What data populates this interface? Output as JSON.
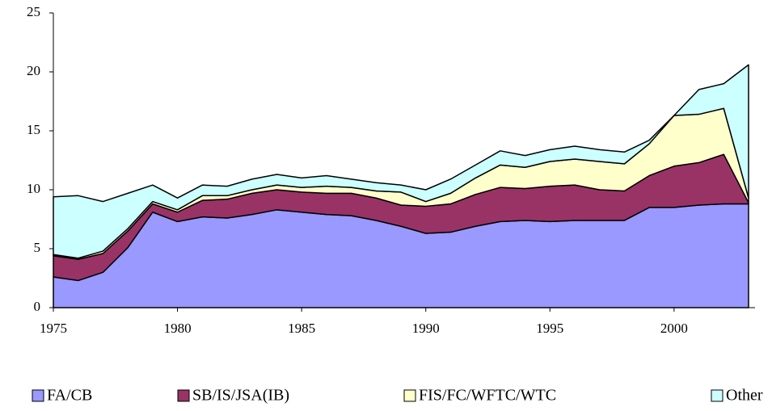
{
  "chart_data": {
    "type": "stacked_area",
    "x": [
      1975,
      1976,
      1977,
      1978,
      1979,
      1980,
      1981,
      1982,
      1983,
      1984,
      1985,
      1986,
      1987,
      1988,
      1989,
      1990,
      1991,
      1992,
      1993,
      1994,
      1995,
      1996,
      1997,
      1998,
      1999,
      2000,
      2001,
      2002,
      2003
    ],
    "series": [
      {
        "name": "FA/CB",
        "color": "#9999ff",
        "values": [
          2.6,
          2.3,
          3.0,
          5.1,
          8.1,
          7.3,
          7.7,
          7.6,
          7.9,
          8.3,
          8.1,
          7.9,
          7.8,
          7.4,
          6.9,
          6.3,
          6.4,
          6.9,
          7.3,
          7.4,
          7.3,
          7.4,
          7.4,
          7.4,
          8.5,
          8.5,
          8.7,
          8.8,
          8.8
        ]
      },
      {
        "name": "SB/IS/JSA(IB)",
        "color": "#993366",
        "values": [
          1.8,
          1.8,
          1.6,
          1.4,
          0.7,
          0.8,
          1.4,
          1.6,
          1.8,
          1.7,
          1.7,
          1.8,
          1.9,
          1.9,
          1.8,
          2.3,
          2.4,
          2.7,
          2.9,
          2.7,
          3.0,
          3.0,
          2.6,
          2.5,
          2.7,
          3.5,
          3.6,
          4.2,
          0.1
        ]
      },
      {
        "name": "FIS/FC/WFTC/WTC",
        "color": "#ffffcc",
        "values": [
          0.1,
          0.1,
          0.2,
          0.2,
          0.2,
          0.2,
          0.4,
          0.3,
          0.3,
          0.4,
          0.4,
          0.6,
          0.5,
          0.6,
          1.1,
          0.4,
          0.9,
          1.4,
          1.9,
          1.8,
          2.1,
          2.2,
          2.4,
          2.3,
          2.7,
          4.3,
          4.1,
          3.9,
          0.4
        ]
      },
      {
        "name": "Other",
        "color": "#ccffff",
        "values": [
          4.9,
          5.3,
          4.2,
          3.0,
          1.4,
          1.0,
          0.9,
          0.8,
          0.9,
          0.9,
          0.8,
          0.9,
          0.7,
          0.7,
          0.6,
          1.0,
          1.2,
          1.1,
          1.2,
          1.0,
          1.0,
          1.1,
          1.0,
          1.0,
          0.3,
          0.0,
          2.1,
          2.1,
          11.3
        ]
      }
    ],
    "xlim": [
      1975,
      2003
    ],
    "xticks": [
      1975,
      1980,
      1985,
      1990,
      1995,
      2000
    ],
    "ylim": [
      0,
      25
    ],
    "yticks": [
      0,
      5,
      10,
      15,
      20,
      25
    ],
    "legend": "bottom"
  }
}
